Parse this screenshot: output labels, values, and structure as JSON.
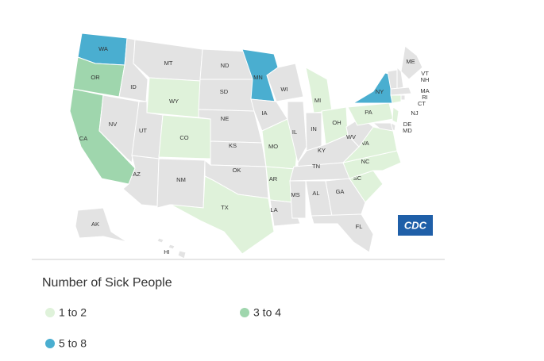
{
  "title": "Number of Sick People",
  "logo": "CDC",
  "default_color": "#e3e3e3",
  "legend": [
    {
      "label": "1 to 2",
      "color": "#dff2da"
    },
    {
      "label": "3 to 4",
      "color": "#9fd6ad"
    },
    {
      "label": "5 to 8",
      "color": "#4aaed0"
    }
  ],
  "states": [
    {
      "label": "WA",
      "group": 2
    },
    {
      "label": "OR",
      "group": 1
    },
    {
      "label": "CA",
      "group": 1
    },
    {
      "label": "NV",
      "group": null
    },
    {
      "label": "ID",
      "group": null
    },
    {
      "label": "MT",
      "group": null
    },
    {
      "label": "WY",
      "group": 0
    },
    {
      "label": "UT",
      "group": null
    },
    {
      "label": "AZ",
      "group": null
    },
    {
      "label": "CO",
      "group": 0
    },
    {
      "label": "NM",
      "group": null
    },
    {
      "label": "ND",
      "group": null
    },
    {
      "label": "SD",
      "group": null
    },
    {
      "label": "NE",
      "group": null
    },
    {
      "label": "KS",
      "group": null
    },
    {
      "label": "OK",
      "group": null
    },
    {
      "label": "TX",
      "group": 0
    },
    {
      "label": "MN",
      "group": 2
    },
    {
      "label": "IA",
      "group": null
    },
    {
      "label": "MO",
      "group": 0
    },
    {
      "label": "AR",
      "group": 0
    },
    {
      "label": "LA",
      "group": null
    },
    {
      "label": "WI",
      "group": null
    },
    {
      "label": "IL",
      "group": null
    },
    {
      "label": "MI",
      "group": 0
    },
    {
      "label": "IN",
      "group": null
    },
    {
      "label": "OH",
      "group": 0
    },
    {
      "label": "KY",
      "group": null
    },
    {
      "label": "TN",
      "group": null
    },
    {
      "label": "MS",
      "group": null
    },
    {
      "label": "AL",
      "group": null
    },
    {
      "label": "GA",
      "group": null
    },
    {
      "label": "FL",
      "group": null
    },
    {
      "label": "SC",
      "group": 0
    },
    {
      "label": "NC",
      "group": 0
    },
    {
      "label": "VA",
      "group": 0
    },
    {
      "label": "WV",
      "group": null
    },
    {
      "label": "PA",
      "group": 0
    },
    {
      "label": "NY",
      "group": 2
    },
    {
      "label": "ME",
      "group": null
    },
    {
      "label": "NH",
      "group": null
    },
    {
      "label": "VT",
      "group": null
    },
    {
      "label": "MA",
      "group": null
    },
    {
      "label": "CT",
      "group": 0
    },
    {
      "label": "RI",
      "group": null
    },
    {
      "label": "NJ",
      "group": 0
    },
    {
      "label": "DE",
      "group": null
    },
    {
      "label": "MD",
      "group": null
    },
    {
      "label": "AK",
      "group": null
    },
    {
      "label": "HI",
      "group": null
    }
  ]
}
